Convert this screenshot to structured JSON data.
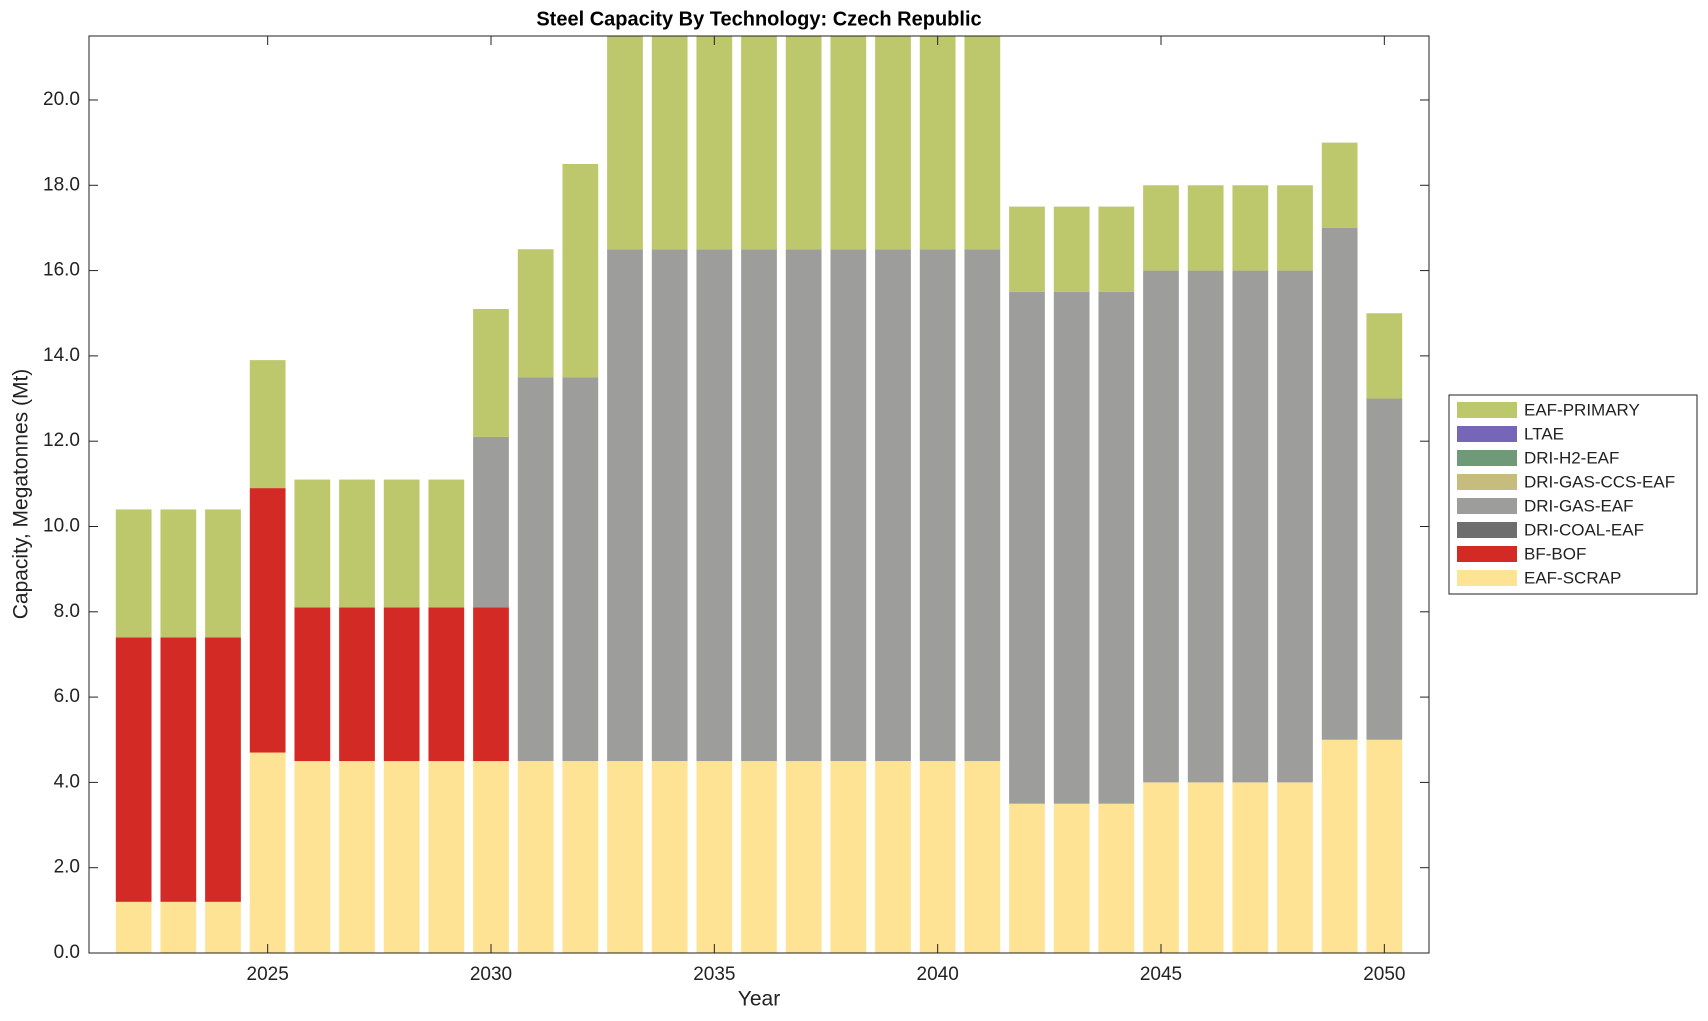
{
  "chart_data": {
    "type": "stacked_bar",
    "title": "Steel Capacity By Technology: Czech Republic",
    "xlabel": "Year",
    "ylabel": "Capacity, Megatonnes (Mt)",
    "x": [
      2022,
      2023,
      2024,
      2025,
      2026,
      2027,
      2028,
      2029,
      2030,
      2031,
      2032,
      2033,
      2034,
      2035,
      2036,
      2037,
      2038,
      2039,
      2040,
      2041,
      2042,
      2043,
      2044,
      2045,
      2046,
      2047,
      2048,
      2049,
      2050
    ],
    "xlim": [
      2021,
      2051
    ],
    "xticks": [
      2025,
      2030,
      2035,
      2040,
      2045,
      2050
    ],
    "ylim": [
      0,
      21.5
    ],
    "yticks": [
      {
        "value": 0,
        "label": "0.0"
      },
      {
        "value": 2,
        "label": "2.0"
      },
      {
        "value": 4,
        "label": "4.0"
      },
      {
        "value": 6,
        "label": "6.0"
      },
      {
        "value": 8,
        "label": "8.0"
      },
      {
        "value": 10,
        "label": "10.0"
      },
      {
        "value": 12,
        "label": "12.0"
      },
      {
        "value": 14,
        "label": "14.0"
      },
      {
        "value": 16,
        "label": "16.0"
      },
      {
        "value": 18,
        "label": "18.0"
      },
      {
        "value": 20,
        "label": "20.0"
      }
    ],
    "grid": false,
    "legend": "outside-right",
    "series": [
      {
        "name": "EAF-SCRAP",
        "color": "#fee395",
        "values": [
          1.2,
          1.2,
          1.2,
          4.7,
          4.5,
          4.5,
          4.5,
          4.5,
          4.5,
          4.5,
          4.5,
          4.5,
          4.5,
          4.5,
          4.5,
          4.5,
          4.5,
          4.5,
          4.5,
          4.5,
          3.5,
          3.5,
          3.5,
          4,
          4,
          4,
          4,
          5,
          5
        ]
      },
      {
        "name": "BF-BOF",
        "color": "#d32a25",
        "values": [
          6.2,
          6.2,
          6.2,
          6.2,
          3.6,
          3.6,
          3.6,
          3.6,
          3.6,
          0,
          0,
          0,
          0,
          0,
          0,
          0,
          0,
          0,
          0,
          0,
          0,
          0,
          0,
          0,
          0,
          0,
          0,
          0,
          0
        ]
      },
      {
        "name": "DRI-COAL-EAF",
        "color": "#6e6e6e",
        "values": [
          0,
          0,
          0,
          0,
          0,
          0,
          0,
          0,
          0,
          0,
          0,
          0,
          0,
          0,
          0,
          0,
          0,
          0,
          0,
          0,
          0,
          0,
          0,
          0,
          0,
          0,
          0,
          0,
          0
        ]
      },
      {
        "name": "DRI-GAS-EAF",
        "color": "#9d9d9c",
        "values": [
          0,
          0,
          0,
          0,
          0,
          0,
          0,
          0,
          4,
          9,
          9,
          12,
          12,
          12,
          12,
          12,
          12,
          12,
          12,
          12,
          12,
          12,
          12,
          12,
          12,
          12,
          12,
          12,
          8
        ]
      },
      {
        "name": "DRI-GAS-CCS-EAF",
        "color": "#c5bc7e",
        "values": [
          0,
          0,
          0,
          0,
          0,
          0,
          0,
          0,
          0,
          0,
          0,
          0,
          0,
          0,
          0,
          0,
          0,
          0,
          0,
          0,
          0,
          0,
          0,
          0,
          0,
          0,
          0,
          0,
          0
        ]
      },
      {
        "name": "DRI-H2-EAF",
        "color": "#6f9a78",
        "values": [
          0,
          0,
          0,
          0,
          0,
          0,
          0,
          0,
          0,
          0,
          0,
          0,
          0,
          0,
          0,
          0,
          0,
          0,
          0,
          0,
          0,
          0,
          0,
          0,
          0,
          0,
          0,
          0,
          0
        ]
      },
      {
        "name": "LTAE",
        "color": "#7566b8",
        "values": [
          0,
          0,
          0,
          0,
          0,
          0,
          0,
          0,
          0,
          0,
          0,
          0,
          0,
          0,
          0,
          0,
          0,
          0,
          0,
          0,
          0,
          0,
          0,
          0,
          0,
          0,
          0,
          0,
          0
        ]
      },
      {
        "name": "EAF-PRIMARY",
        "color": "#bdc76b",
        "values": [
          3,
          3,
          3,
          3,
          3,
          3,
          3,
          3,
          3,
          3,
          5,
          5,
          5,
          5,
          5,
          5,
          5,
          5,
          5,
          5,
          2,
          2,
          2,
          2,
          2,
          2,
          2,
          2,
          2
        ]
      }
    ]
  }
}
